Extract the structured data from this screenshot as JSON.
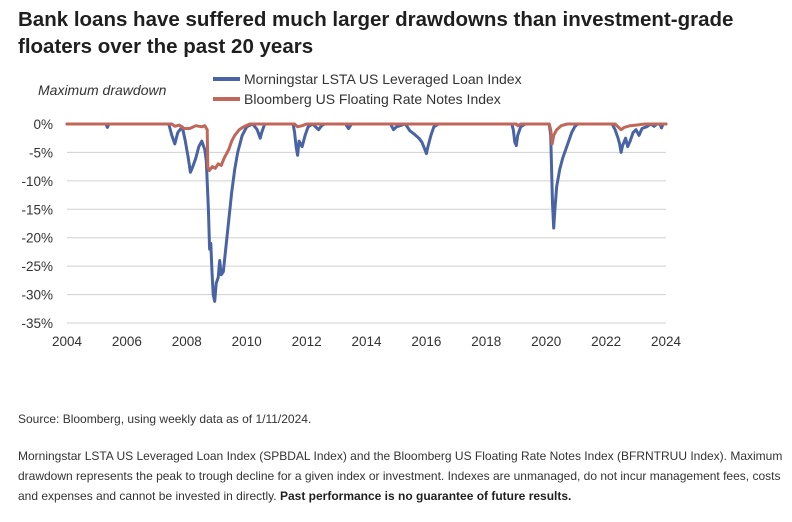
{
  "title": "Bank loans have suffered much larger drawdowns than investment-grade floaters over the past 20 years",
  "source": "Source: Bloomberg, using weekly data as of 1/11/2024.",
  "footnote": {
    "text": "Morningstar LSTA US Leveraged Loan Index (SPBDAL Index) and the Bloomberg US Floating Rate Notes Index (BFRNTRUU Index). Maximum drawdown represents the peak to trough decline for a given index or investment. Indexes are unmanaged, do not incur management fees, costs and expenses and cannot be invested in directly.",
    "bold": "Past performance is no guarantee of future results."
  },
  "chart_data": {
    "type": "line",
    "ylabel": "Maximum drawdown",
    "xlim": [
      2004,
      2024
    ],
    "ylim": [
      -35,
      0
    ],
    "x_ticks": [
      "2004",
      "2006",
      "2008",
      "2010",
      "2012",
      "2014",
      "2016",
      "2018",
      "2020",
      "2022",
      "2024"
    ],
    "y_ticks": [
      "0%",
      "-5%",
      "-10%",
      "-15%",
      "-20%",
      "-25%",
      "-30%",
      "-35%"
    ],
    "grid": "horizontal",
    "legend": "top-center",
    "series": [
      {
        "name": "Morningstar LSTA US Leveraged Loan Index",
        "color": "#4a63a4",
        "points": [
          [
            2004.0,
            0
          ],
          [
            2005.3,
            0
          ],
          [
            2005.35,
            -0.6
          ],
          [
            2005.4,
            0
          ],
          [
            2007.4,
            0
          ],
          [
            2007.5,
            -2
          ],
          [
            2007.6,
            -3.5
          ],
          [
            2007.7,
            -1.5
          ],
          [
            2007.85,
            -0.5
          ],
          [
            2007.95,
            -3
          ],
          [
            2008.05,
            -6
          ],
          [
            2008.12,
            -8.5
          ],
          [
            2008.2,
            -7.5
          ],
          [
            2008.3,
            -6
          ],
          [
            2008.4,
            -4
          ],
          [
            2008.5,
            -3
          ],
          [
            2008.6,
            -4.5
          ],
          [
            2008.65,
            -6.5
          ],
          [
            2008.72,
            -15
          ],
          [
            2008.76,
            -22
          ],
          [
            2008.8,
            -21
          ],
          [
            2008.84,
            -26
          ],
          [
            2008.88,
            -30
          ],
          [
            2008.93,
            -31.2
          ],
          [
            2008.98,
            -28
          ],
          [
            2009.05,
            -27
          ],
          [
            2009.1,
            -24
          ],
          [
            2009.15,
            -26.5
          ],
          [
            2009.22,
            -26
          ],
          [
            2009.3,
            -22
          ],
          [
            2009.4,
            -17
          ],
          [
            2009.5,
            -12
          ],
          [
            2009.6,
            -8
          ],
          [
            2009.7,
            -5
          ],
          [
            2009.85,
            -2
          ],
          [
            2010.0,
            -0.5
          ],
          [
            2010.2,
            0
          ],
          [
            2010.35,
            -1
          ],
          [
            2010.45,
            -2.5
          ],
          [
            2010.5,
            -1.5
          ],
          [
            2010.6,
            0
          ],
          [
            2011.55,
            0
          ],
          [
            2011.6,
            -1.5
          ],
          [
            2011.65,
            -4
          ],
          [
            2011.7,
            -5.5
          ],
          [
            2011.75,
            -3
          ],
          [
            2011.85,
            -4
          ],
          [
            2011.95,
            -2
          ],
          [
            2012.05,
            -0.5
          ],
          [
            2012.2,
            0
          ],
          [
            2012.4,
            -1
          ],
          [
            2012.5,
            -0.3
          ],
          [
            2012.6,
            0
          ],
          [
            2013.3,
            0
          ],
          [
            2013.4,
            -0.8
          ],
          [
            2013.5,
            0
          ],
          [
            2014.8,
            0
          ],
          [
            2014.9,
            -1
          ],
          [
            2015.0,
            -0.5
          ],
          [
            2015.3,
            0
          ],
          [
            2015.45,
            -1.2
          ],
          [
            2015.6,
            -1.8
          ],
          [
            2015.75,
            -2.5
          ],
          [
            2015.85,
            -3.2
          ],
          [
            2015.95,
            -4.5
          ],
          [
            2016.0,
            -5.2
          ],
          [
            2016.05,
            -4
          ],
          [
            2016.15,
            -2
          ],
          [
            2016.25,
            -0.5
          ],
          [
            2016.4,
            0
          ],
          [
            2018.85,
            0
          ],
          [
            2018.9,
            -1
          ],
          [
            2018.95,
            -3.2
          ],
          [
            2019.0,
            -3.8
          ],
          [
            2019.05,
            -2
          ],
          [
            2019.15,
            -0.5
          ],
          [
            2019.3,
            0
          ],
          [
            2020.1,
            0
          ],
          [
            2020.15,
            -2
          ],
          [
            2020.18,
            -8
          ],
          [
            2020.21,
            -14
          ],
          [
            2020.25,
            -18.3
          ],
          [
            2020.29,
            -15
          ],
          [
            2020.35,
            -11
          ],
          [
            2020.45,
            -8
          ],
          [
            2020.55,
            -6
          ],
          [
            2020.65,
            -4.5
          ],
          [
            2020.75,
            -3
          ],
          [
            2020.85,
            -1.5
          ],
          [
            2020.95,
            -0.5
          ],
          [
            2021.05,
            0
          ],
          [
            2022.2,
            0
          ],
          [
            2022.3,
            -1
          ],
          [
            2022.4,
            -2.5
          ],
          [
            2022.45,
            -3.5
          ],
          [
            2022.5,
            -5
          ],
          [
            2022.55,
            -3.8
          ],
          [
            2022.65,
            -2.5
          ],
          [
            2022.72,
            -4
          ],
          [
            2022.8,
            -3
          ],
          [
            2022.9,
            -1.5
          ],
          [
            2023.0,
            -1
          ],
          [
            2023.1,
            -2
          ],
          [
            2023.2,
            -0.8
          ],
          [
            2023.35,
            -0.5
          ],
          [
            2023.5,
            0
          ],
          [
            2023.6,
            -0.4
          ],
          [
            2023.7,
            0
          ],
          [
            2023.8,
            0
          ],
          [
            2023.85,
            -0.7
          ],
          [
            2023.9,
            0
          ],
          [
            2024.0,
            0
          ]
        ]
      },
      {
        "name": "Bloomberg US Floating Rate Notes Index",
        "color": "#c0675a",
        "points": [
          [
            2004.0,
            0
          ],
          [
            2007.5,
            0
          ],
          [
            2007.6,
            -0.4
          ],
          [
            2007.75,
            -0.2
          ],
          [
            2007.9,
            -0.8
          ],
          [
            2008.1,
            -0.8
          ],
          [
            2008.3,
            -0.3
          ],
          [
            2008.5,
            -0.5
          ],
          [
            2008.6,
            -0.3
          ],
          [
            2008.68,
            -1
          ],
          [
            2008.7,
            -7.5
          ],
          [
            2008.75,
            -8.2
          ],
          [
            2008.85,
            -7.5
          ],
          [
            2008.95,
            -7.8
          ],
          [
            2009.05,
            -7
          ],
          [
            2009.15,
            -7.3
          ],
          [
            2009.25,
            -6
          ],
          [
            2009.4,
            -4.5
          ],
          [
            2009.5,
            -3
          ],
          [
            2009.6,
            -2
          ],
          [
            2009.75,
            -1
          ],
          [
            2009.9,
            -0.5
          ],
          [
            2010.1,
            0
          ],
          [
            2011.6,
            0
          ],
          [
            2011.7,
            -0.5
          ],
          [
            2011.85,
            -0.3
          ],
          [
            2012.0,
            0
          ],
          [
            2019.0,
            0
          ],
          [
            2019.05,
            -0.3
          ],
          [
            2019.15,
            0
          ],
          [
            2020.1,
            0
          ],
          [
            2020.15,
            -1
          ],
          [
            2020.2,
            -3.5
          ],
          [
            2020.25,
            -2
          ],
          [
            2020.35,
            -1
          ],
          [
            2020.5,
            -0.3
          ],
          [
            2020.7,
            0
          ],
          [
            2022.3,
            0
          ],
          [
            2022.4,
            -0.5
          ],
          [
            2022.5,
            -1
          ],
          [
            2022.6,
            -0.6
          ],
          [
            2022.8,
            -0.3
          ],
          [
            2023.0,
            -0.2
          ],
          [
            2023.3,
            0
          ],
          [
            2024.0,
            0
          ]
        ]
      }
    ]
  }
}
